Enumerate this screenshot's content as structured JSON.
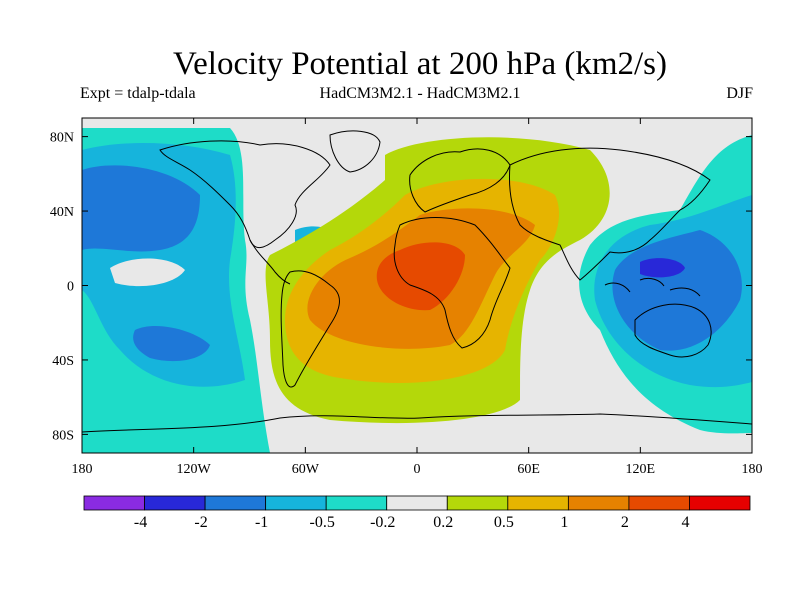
{
  "title": "Velocity Potential at 200 hPa (km2/s)",
  "subtitle_left": "Expt = tdalp-tdala",
  "subtitle_center": "HadCM3M2.1 - HadCM3M2.1",
  "subtitle_right": "DJF",
  "lat_ticks": [
    {
      "label": "80N",
      "value": 80
    },
    {
      "label": "40N",
      "value": 40
    },
    {
      "label": "0",
      "value": 0
    },
    {
      "label": "40S",
      "value": -40
    },
    {
      "label": "80S",
      "value": -80
    }
  ],
  "lon_ticks": [
    {
      "label": "180",
      "value": -180
    },
    {
      "label": "120W",
      "value": -120
    },
    {
      "label": "60W",
      "value": -60
    },
    {
      "label": "0",
      "value": 0
    },
    {
      "label": "60E",
      "value": 60
    },
    {
      "label": "120E",
      "value": 120
    },
    {
      "label": "180",
      "value": 180
    }
  ],
  "colorbar": {
    "colors": [
      "#8a2be2",
      "#2828d8",
      "#1e78d8",
      "#16b4dc",
      "#1edcc8",
      "#e8e8e8",
      "#b4d80a",
      "#e6b400",
      "#e68200",
      "#e64a00",
      "#e60000"
    ],
    "labels": [
      "-4",
      "-2",
      "-1",
      "-0.5",
      "-0.2",
      "0.2",
      "0.5",
      "1",
      "2",
      "4"
    ]
  }
}
